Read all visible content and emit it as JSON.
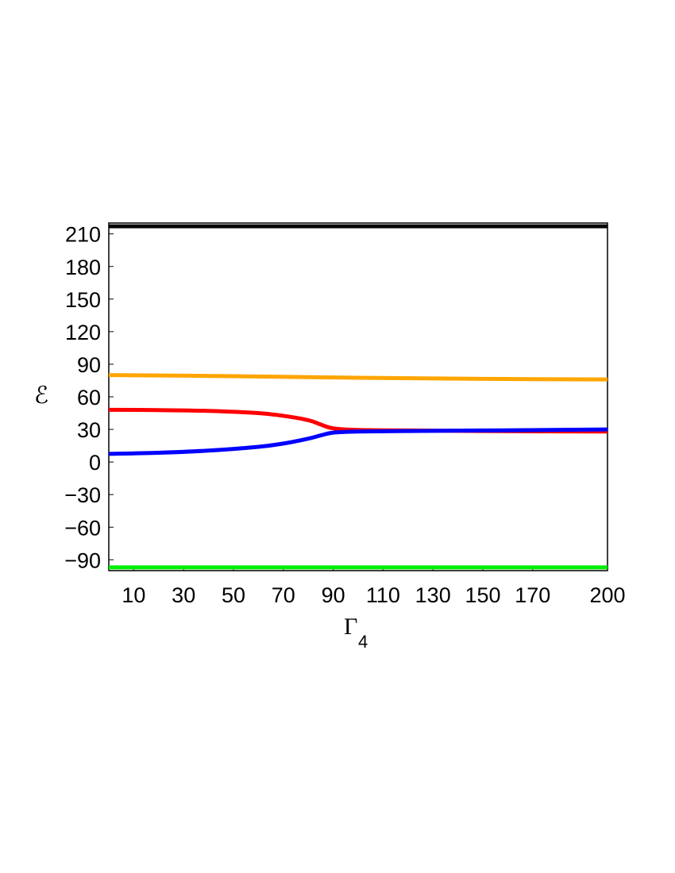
{
  "chart_data": {
    "type": "line",
    "title": "",
    "xlabel": "Γ",
    "xlabel_sub": "4",
    "ylabel": "ℰ",
    "xlim": [
      0,
      200
    ],
    "ylim": [
      -100,
      220
    ],
    "xticks": [
      10,
      30,
      50,
      70,
      90,
      110,
      130,
      150,
      170,
      200
    ],
    "yticks": [
      -90,
      -60,
      -30,
      0,
      30,
      60,
      90,
      120,
      150,
      180,
      210
    ],
    "grid": false,
    "legend": "none",
    "series": [
      {
        "color": "#000000",
        "x": [
          0,
          200
        ],
        "y": [
          217,
          217
        ]
      },
      {
        "color": "#ffa500",
        "x": [
          0,
          50,
          100,
          150,
          200
        ],
        "y": [
          80,
          79,
          77.5,
          76.5,
          76
        ]
      },
      {
        "color": "#ff0000",
        "x": [
          0,
          20,
          40,
          60,
          70,
          80,
          85,
          90,
          100,
          120,
          150,
          200
        ],
        "y": [
          48,
          47.8,
          47,
          45,
          42.5,
          38.5,
          34.5,
          31,
          29.5,
          29,
          28.5,
          28
        ]
      },
      {
        "color": "#0000ff",
        "x": [
          0,
          20,
          40,
          60,
          70,
          80,
          85,
          90,
          100,
          120,
          150,
          200
        ],
        "y": [
          7.5,
          8.5,
          10.5,
          14,
          17,
          21.5,
          24.5,
          27,
          28,
          28.5,
          29,
          30
        ]
      },
      {
        "color": "#00ee00",
        "x": [
          0,
          200
        ],
        "y": [
          -97,
          -97
        ]
      }
    ]
  }
}
